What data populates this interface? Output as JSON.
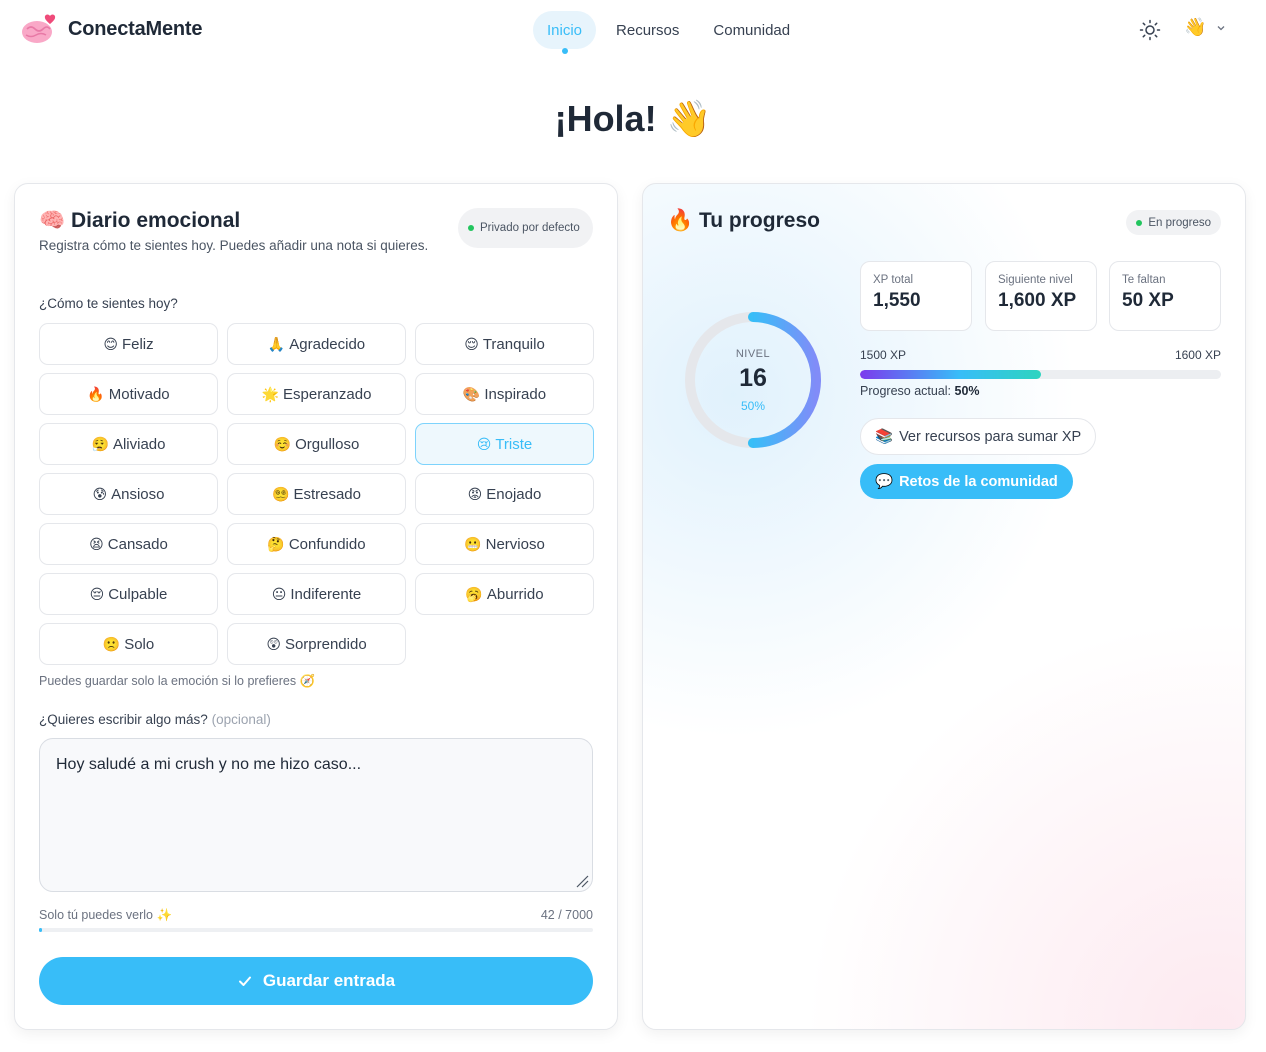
{
  "header": {
    "app_name": "ConectaMente",
    "nav": [
      {
        "label": "Inicio",
        "active": true
      },
      {
        "label": "Recursos",
        "active": false
      },
      {
        "label": "Comunidad",
        "active": false
      }
    ],
    "user_emoji": "👋"
  },
  "greeting": "¡Hola! 👋",
  "journal": {
    "title_icon": "🧠",
    "title": "Diario emocional",
    "subtitle": "Registra cómo te sientes hoy. Puedes añadir una nota si quieres.",
    "privacy_badge": "Privado por defecto",
    "question": "¿Cómo te sientes hoy?",
    "emotions": [
      {
        "icon": "😊",
        "label": "Feliz",
        "selected": false
      },
      {
        "icon": "🙏",
        "label": "Agradecido",
        "selected": false
      },
      {
        "icon": "😌",
        "label": "Tranquilo",
        "selected": false
      },
      {
        "icon": "🔥",
        "label": "Motivado",
        "selected": false
      },
      {
        "icon": "🌟",
        "label": "Esperanzado",
        "selected": false
      },
      {
        "icon": "🎨",
        "label": "Inspirado",
        "selected": false
      },
      {
        "icon": "😮‍💨",
        "label": "Aliviado",
        "selected": false
      },
      {
        "icon": "☺️",
        "label": "Orgulloso",
        "selected": false
      },
      {
        "icon": "😢",
        "label": "Triste",
        "selected": true
      },
      {
        "icon": "😰",
        "label": "Ansioso",
        "selected": false
      },
      {
        "icon": "😵‍💫",
        "label": "Estresado",
        "selected": false
      },
      {
        "icon": "😡",
        "label": "Enojado",
        "selected": false
      },
      {
        "icon": "😫",
        "label": "Cansado",
        "selected": false
      },
      {
        "icon": "🤔",
        "label": "Confundido",
        "selected": false
      },
      {
        "icon": "😬",
        "label": "Nervioso",
        "selected": false
      },
      {
        "icon": "😔",
        "label": "Culpable",
        "selected": false
      },
      {
        "icon": "😐",
        "label": "Indiferente",
        "selected": false
      },
      {
        "icon": "🥱",
        "label": "Aburrido",
        "selected": false
      },
      {
        "icon": "🙁",
        "label": "Solo",
        "selected": false
      },
      {
        "icon": "😲",
        "label": "Sorprendido",
        "selected": false
      }
    ],
    "hint": "Puedes guardar solo la emoción si lo prefieres 🧭",
    "note_label": "¿Quieres escribir algo más?",
    "note_optional": "(opcional)",
    "note_value": "Hoy saludé a mi crush y no me hizo caso...",
    "privacy_note": "Solo tú puedes verlo ✨",
    "char_count": "42 / 7000",
    "char_fraction": 0.006,
    "save_label": "Guardar entrada"
  },
  "progress": {
    "title_icon": "🔥",
    "title": "Tu progreso",
    "status_badge": "En progreso",
    "level_caption": "NIVEL",
    "level": "16",
    "level_percent": "50%",
    "level_fraction": 0.5,
    "stats": [
      {
        "label": "XP total",
        "value": "1,550"
      },
      {
        "label": "Siguiente nivel",
        "value": "1,600 XP"
      },
      {
        "label": "Te faltan",
        "value": "50 XP"
      }
    ],
    "range_min": "1500 XP",
    "range_max": "1600 XP",
    "bar_fraction": 0.5,
    "current_label": "Progreso actual:",
    "current_value": "50%",
    "resources_icon": "📚",
    "resources_label": "Ver recursos para sumar XP",
    "community_icon": "💬",
    "community_label": "Retos de la comunidad"
  },
  "colors": {
    "accent": "#38bdf8",
    "success": "#22c55e",
    "text": "#1f2937"
  }
}
